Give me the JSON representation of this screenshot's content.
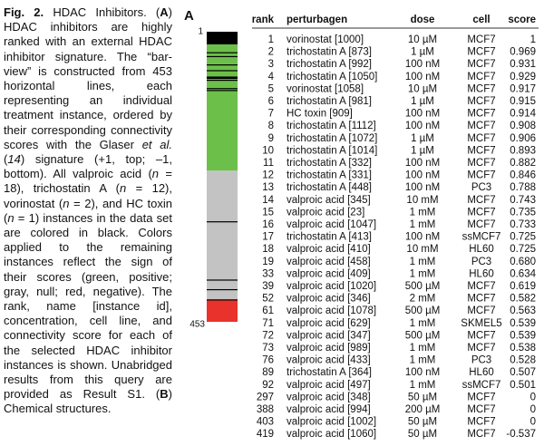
{
  "caption": {
    "runs": [
      {
        "text": "Fig. 2.",
        "style": "bold"
      },
      {
        "text": " HDAC Inhibitors. (",
        "style": "normal"
      },
      {
        "text": "A",
        "style": "bold"
      },
      {
        "text": ") HDAC inhibitors are highly ranked with an external HDAC inhibitor signature. The “bar-view” is constructed from 453 horizontal lines, each representing an individual treatment instance, ordered by their corresponding connectivity scores with the Glaser ",
        "style": "normal"
      },
      {
        "text": "et al.",
        "style": "italic"
      },
      {
        "text": " (",
        "style": "normal"
      },
      {
        "text": "14",
        "style": "italic"
      },
      {
        "text": ") signature (+1, top; –1, bottom). All valproic acid (",
        "style": "normal"
      },
      {
        "text": "n",
        "style": "italic"
      },
      {
        "text": " = 18), trichostatin A (",
        "style": "normal"
      },
      {
        "text": "n",
        "style": "italic"
      },
      {
        "text": " = 12), vorinostat (",
        "style": "normal"
      },
      {
        "text": "n",
        "style": "italic"
      },
      {
        "text": " = 2), and HC toxin (",
        "style": "normal"
      },
      {
        "text": "n",
        "style": "italic"
      },
      {
        "text": " = 1) instances in the data set are colored in black. Colors applied to the remaining instances reflect the sign of their scores (green, positive; gray, null; red, negative). The rank, name [instance id], concentration, cell line, and connectivity score for each of the selected HDAC inhibitor instances is shown. Unabridged results from this query are provided as Result S1. (",
        "style": "normal"
      },
      {
        "text": "B",
        "style": "bold"
      },
      {
        "text": ") Chemical structures.",
        "style": "normal"
      }
    ]
  },
  "panel_label": "A",
  "barview": {
    "top_label": "1",
    "bottom_label": "453",
    "total": 453,
    "segments": [
      {
        "from": 1,
        "to": 217,
        "color": "#6cc04a"
      },
      {
        "from": 218,
        "to": 418,
        "color": "#c3c3c3"
      },
      {
        "from": 419,
        "to": 453,
        "color": "#e8322b"
      }
    ]
  },
  "table": {
    "header": [
      "rank",
      "perturbagen",
      "dose",
      "cell",
      "score"
    ],
    "rows": [
      [
        1,
        "vorinostat [1000]",
        "10 µM",
        "MCF7",
        "1"
      ],
      [
        2,
        "trichostatin A [873]",
        "1 µM",
        "MCF7",
        "0.969"
      ],
      [
        3,
        "trichostatin A [992]",
        "100 nM",
        "MCF7",
        "0.931"
      ],
      [
        4,
        "trichostatin A [1050]",
        "100 nM",
        "MCF7",
        "0.929"
      ],
      [
        5,
        "vorinostat [1058]",
        "10 µM",
        "MCF7",
        "0.917"
      ],
      [
        6,
        "trichostatin A [981]",
        "1 µM",
        "MCF7",
        "0.915"
      ],
      [
        7,
        "HC toxin [909]",
        "100 nM",
        "MCF7",
        "0.914"
      ],
      [
        8,
        "trichostatin A [1112]",
        "100 nM",
        "MCF7",
        "0.908"
      ],
      [
        9,
        "trichostatin A [1072]",
        "1 µM",
        "MCF7",
        "0.906"
      ],
      [
        10,
        "trichostatin A [1014]",
        "1 µM",
        "MCF7",
        "0.893"
      ],
      [
        11,
        "trichostatin A [332]",
        "100 nM",
        "MCF7",
        "0.882"
      ],
      [
        12,
        "trichostatin A [331]",
        "100 nM",
        "MCF7",
        "0.846"
      ],
      [
        13,
        "trichostatin A [448]",
        "100 nM",
        "PC3",
        "0.788"
      ],
      [
        14,
        "valproic acid [345]",
        "10 mM",
        "MCF7",
        "0.743"
      ],
      [
        15,
        "valproic acid [23]",
        "1 mM",
        "MCF7",
        "0.735"
      ],
      [
        16,
        "valproic acid [1047]",
        "1 mM",
        "MCF7",
        "0.733"
      ],
      [
        17,
        "trichostatin A [413]",
        "100 nM",
        "ssMCF7",
        "0.725"
      ],
      [
        18,
        "valproic acid [410]",
        "10 mM",
        "HL60",
        "0.725"
      ],
      [
        19,
        "valproic acid [458]",
        "1 mM",
        "PC3",
        "0.680"
      ],
      [
        33,
        "valproic acid [409]",
        "1 mM",
        "HL60",
        "0.634"
      ],
      [
        39,
        "valproic acid [1020]",
        "500 µM",
        "MCF7",
        "0.619"
      ],
      [
        52,
        "valproic acid [346]",
        "2 mM",
        "MCF7",
        "0.582"
      ],
      [
        61,
        "valproic acid [1078]",
        "500 µM",
        "MCF7",
        "0.563"
      ],
      [
        71,
        "valproic acid [629]",
        "1 mM",
        "SKMEL5",
        "0.539"
      ],
      [
        72,
        "valproic acid [347]",
        "500 µM",
        "MCF7",
        "0.539"
      ],
      [
        73,
        "valproic acid [989]",
        "1 mM",
        "MCF7",
        "0.538"
      ],
      [
        76,
        "valproic acid [433]",
        "1 mM",
        "PC3",
        "0.528"
      ],
      [
        89,
        "trichostatin A [364]",
        "100 nM",
        "HL60",
        "0.507"
      ],
      [
        92,
        "valproic acid [497]",
        "1 mM",
        "ssMCF7",
        "0.501"
      ],
      [
        297,
        "valproic acid [348]",
        "50 µM",
        "MCF7",
        "0"
      ],
      [
        388,
        "valproic acid [994]",
        "200 µM",
        "MCF7",
        "0"
      ],
      [
        403,
        "valproic acid [1002]",
        "50 µM",
        "MCF7",
        "0"
      ],
      [
        419,
        "valproic acid [1060]",
        "50 µM",
        "MCF7",
        "-0.537"
      ]
    ]
  }
}
